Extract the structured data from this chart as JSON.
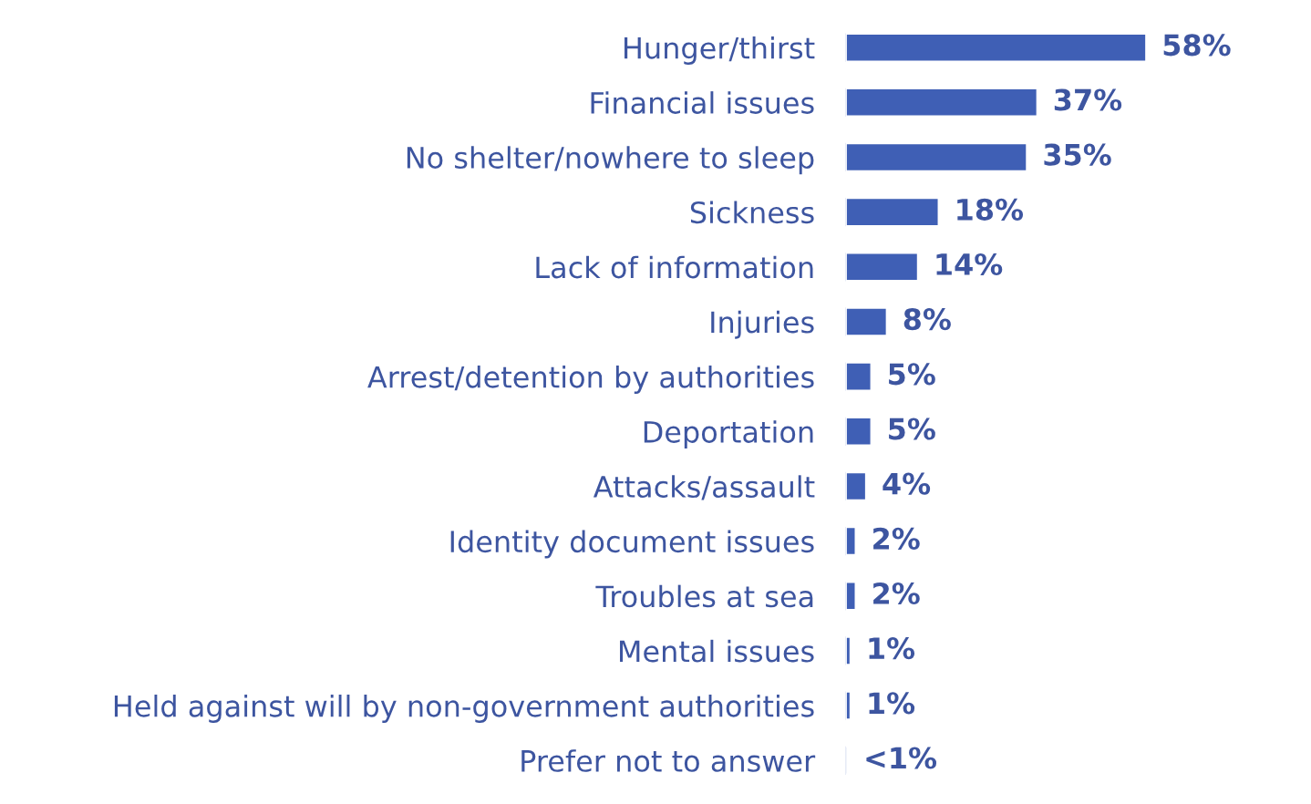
{
  "chart_data": {
    "type": "bar",
    "orientation": "horizontal",
    "categories": [
      "Hunger/thirst",
      "Financial issues",
      "No shelter/nowhere to sleep",
      "Sickness",
      "Lack of information",
      "Injuries",
      "Arrest/detention by authorities",
      "Deportation",
      "Attacks/assault",
      "Identity document issues",
      "Troubles at sea",
      "Mental issues",
      "Held against will by non-government authorities",
      "Prefer not to answer"
    ],
    "values": [
      58,
      37,
      35,
      18,
      14,
      8,
      5,
      5,
      4,
      2,
      2,
      1,
      1,
      0.5
    ],
    "value_labels": [
      "58%",
      "37%",
      "35%",
      "18%",
      "14%",
      "8%",
      "5%",
      "5%",
      "4%",
      "2%",
      "2%",
      "1%",
      "1%",
      "<1%"
    ],
    "color": "#3f5fb5",
    "tick_labels": "y",
    "grid": false,
    "legend": false
  }
}
